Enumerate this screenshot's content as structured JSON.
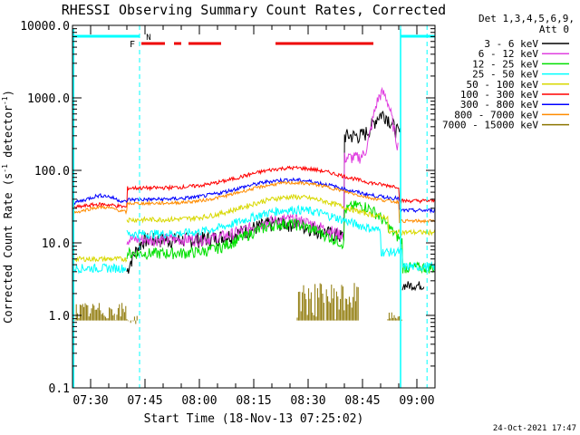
{
  "chart_data": {
    "type": "line",
    "title": "RHESSI Observing Summary Count Rates, Corrected",
    "xlabel": "Start Time (18-Nov-13 07:25:02)",
    "ylabel": "Corrected Count Rate (s",
    "ylabel_sup": "-1",
    "ylabel_tail": " detector",
    "ylabel_sup2": "-1",
    "ylabel_close": ")",
    "yscale": "log",
    "ylim": [
      0.1,
      10000.0
    ],
    "xlim_minutes": [
      25,
      125
    ],
    "x_ticks": [
      "07:30",
      "07:45",
      "08:00",
      "08:15",
      "08:30",
      "08:45",
      "09:00"
    ],
    "y_ticks": [
      "0.1",
      "1.0",
      "10.0",
      "100.0",
      "1000.0",
      "10000.0"
    ],
    "legend_header": [
      "Det 1,3,4,5,6,9,",
      "Att 0"
    ],
    "legend_position": "right",
    "series": [
      {
        "name": "3 - 6 keV",
        "color": "#000000"
      },
      {
        "name": "6 - 12 keV",
        "color": "#e040e0"
      },
      {
        "name": "12 - 25 keV",
        "color": "#00e000"
      },
      {
        "name": "25 - 50 keV",
        "color": "#00ffff"
      },
      {
        "name": "50 - 100 keV",
        "color": "#d8d800"
      },
      {
        "name": "100 - 300 keV",
        "color": "#ff0000"
      },
      {
        "name": "300 - 800 keV",
        "color": "#0000ff"
      },
      {
        "name": "800 - 7000 keV",
        "color": "#ff8c00"
      },
      {
        "name": "7000 - 15000 keV",
        "color": "#8b7500"
      }
    ],
    "flag_labels": {
      "f": "F",
      "n": "N"
    },
    "vertical_lines_minutes": [
      43.5,
      115.5
    ],
    "footer_date": "24-Oct-2021 17:47"
  }
}
